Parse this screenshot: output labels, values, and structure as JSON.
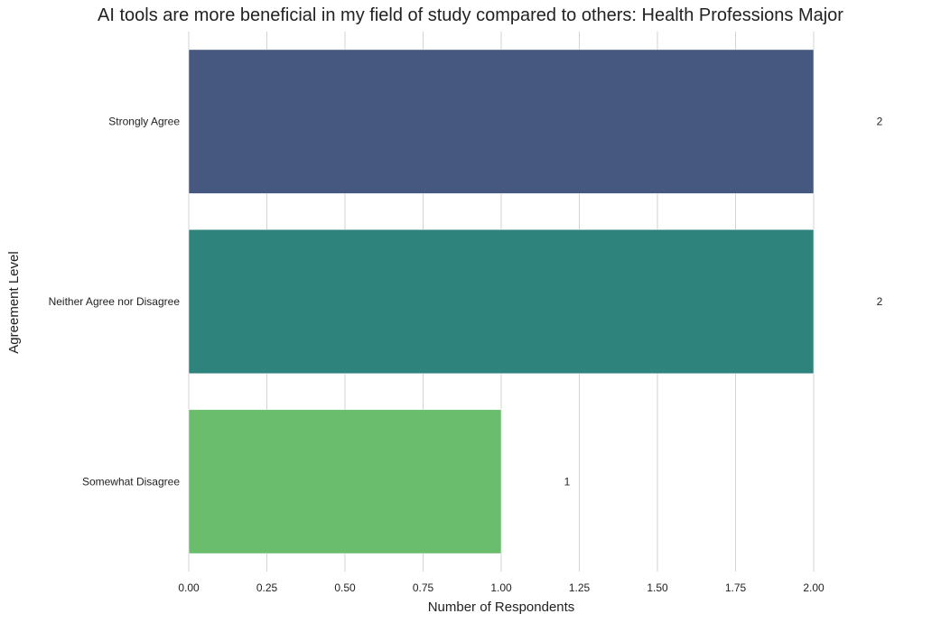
{
  "chart_data": {
    "type": "bar",
    "orientation": "horizontal",
    "title": "AI tools are more beneficial in my field of study compared to others: Health Professions Major",
    "xlabel": "Number of Respondents",
    "ylabel": "Agreement Level",
    "categories": [
      "Strongly Agree",
      "Neither Agree nor Disagree",
      "Somewhat Disagree"
    ],
    "values": [
      2,
      2,
      1
    ],
    "data_labels": [
      "2",
      "2",
      "1"
    ],
    "colors": [
      "#46587f",
      "#2e837c",
      "#6bbd6e"
    ],
    "xlim": [
      0,
      2.0
    ],
    "x_ticks": [
      0.0,
      0.25,
      0.5,
      0.75,
      1.0,
      1.25,
      1.5,
      1.75,
      2.0
    ],
    "x_tick_labels": [
      "0.00",
      "0.25",
      "0.50",
      "0.75",
      "1.00",
      "1.25",
      "1.50",
      "1.75",
      "2.00"
    ],
    "grid": "vertical",
    "legend": "none"
  }
}
